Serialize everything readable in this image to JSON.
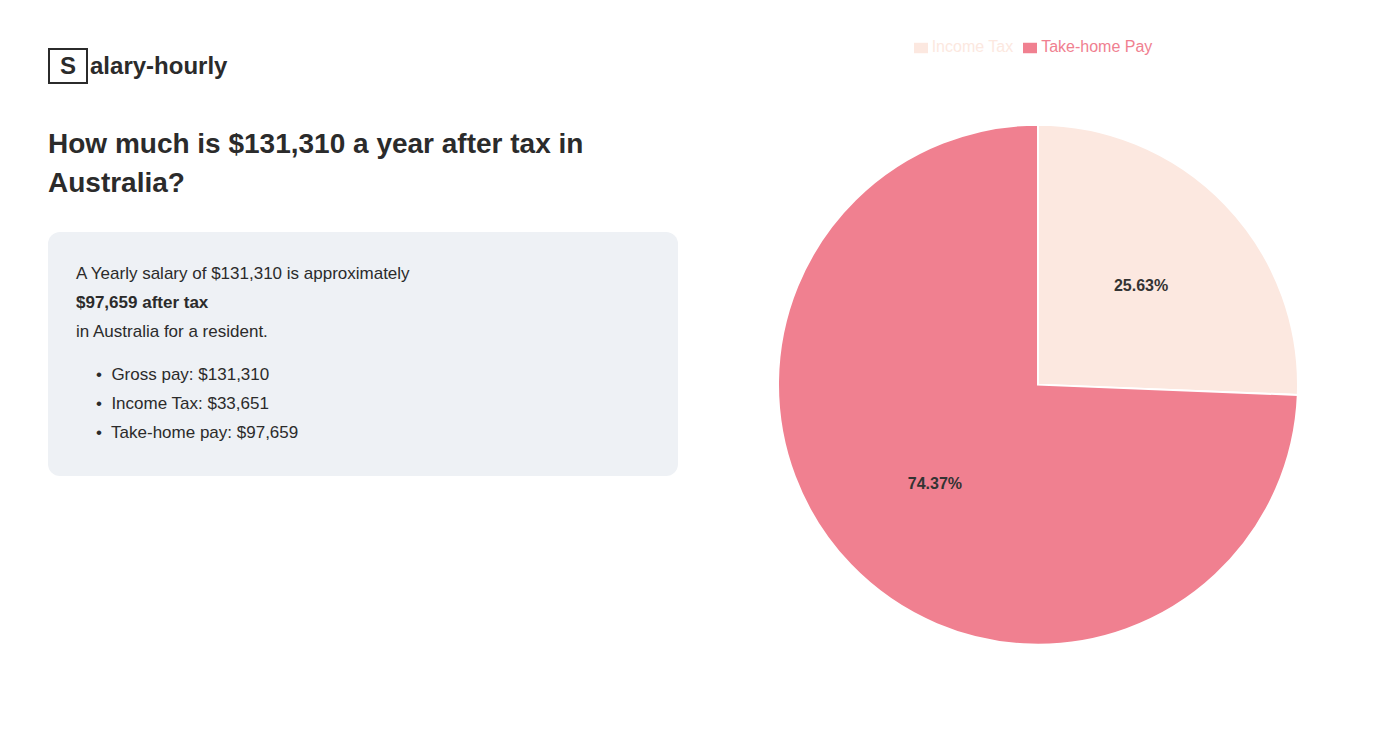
{
  "chart_data": {
    "type": "pie",
    "title": "How much is $131,310 a year after tax in\nAustralia?",
    "annotations": [
      "S",
      "alary-hourly",
      "A Yearly salary of $131,310 is approximately ",
      "$97,659 after tax",
      "in Australia for a resident.",
      "•  Gross pay: $131,310",
      "•  Income Tax: $33,651",
      "•  Take-home pay: $97,659"
    ],
    "categories": [
      "Income Tax",
      "Take-home Pay"
    ],
    "values": [
      25.63,
      74.37
    ],
    "value_labels": [
      "25.63%",
      "74.37%"
    ],
    "colors": [
      "#fce8e0",
      "#f08090"
    ],
    "data_labels": true,
    "legend": "top"
  }
}
